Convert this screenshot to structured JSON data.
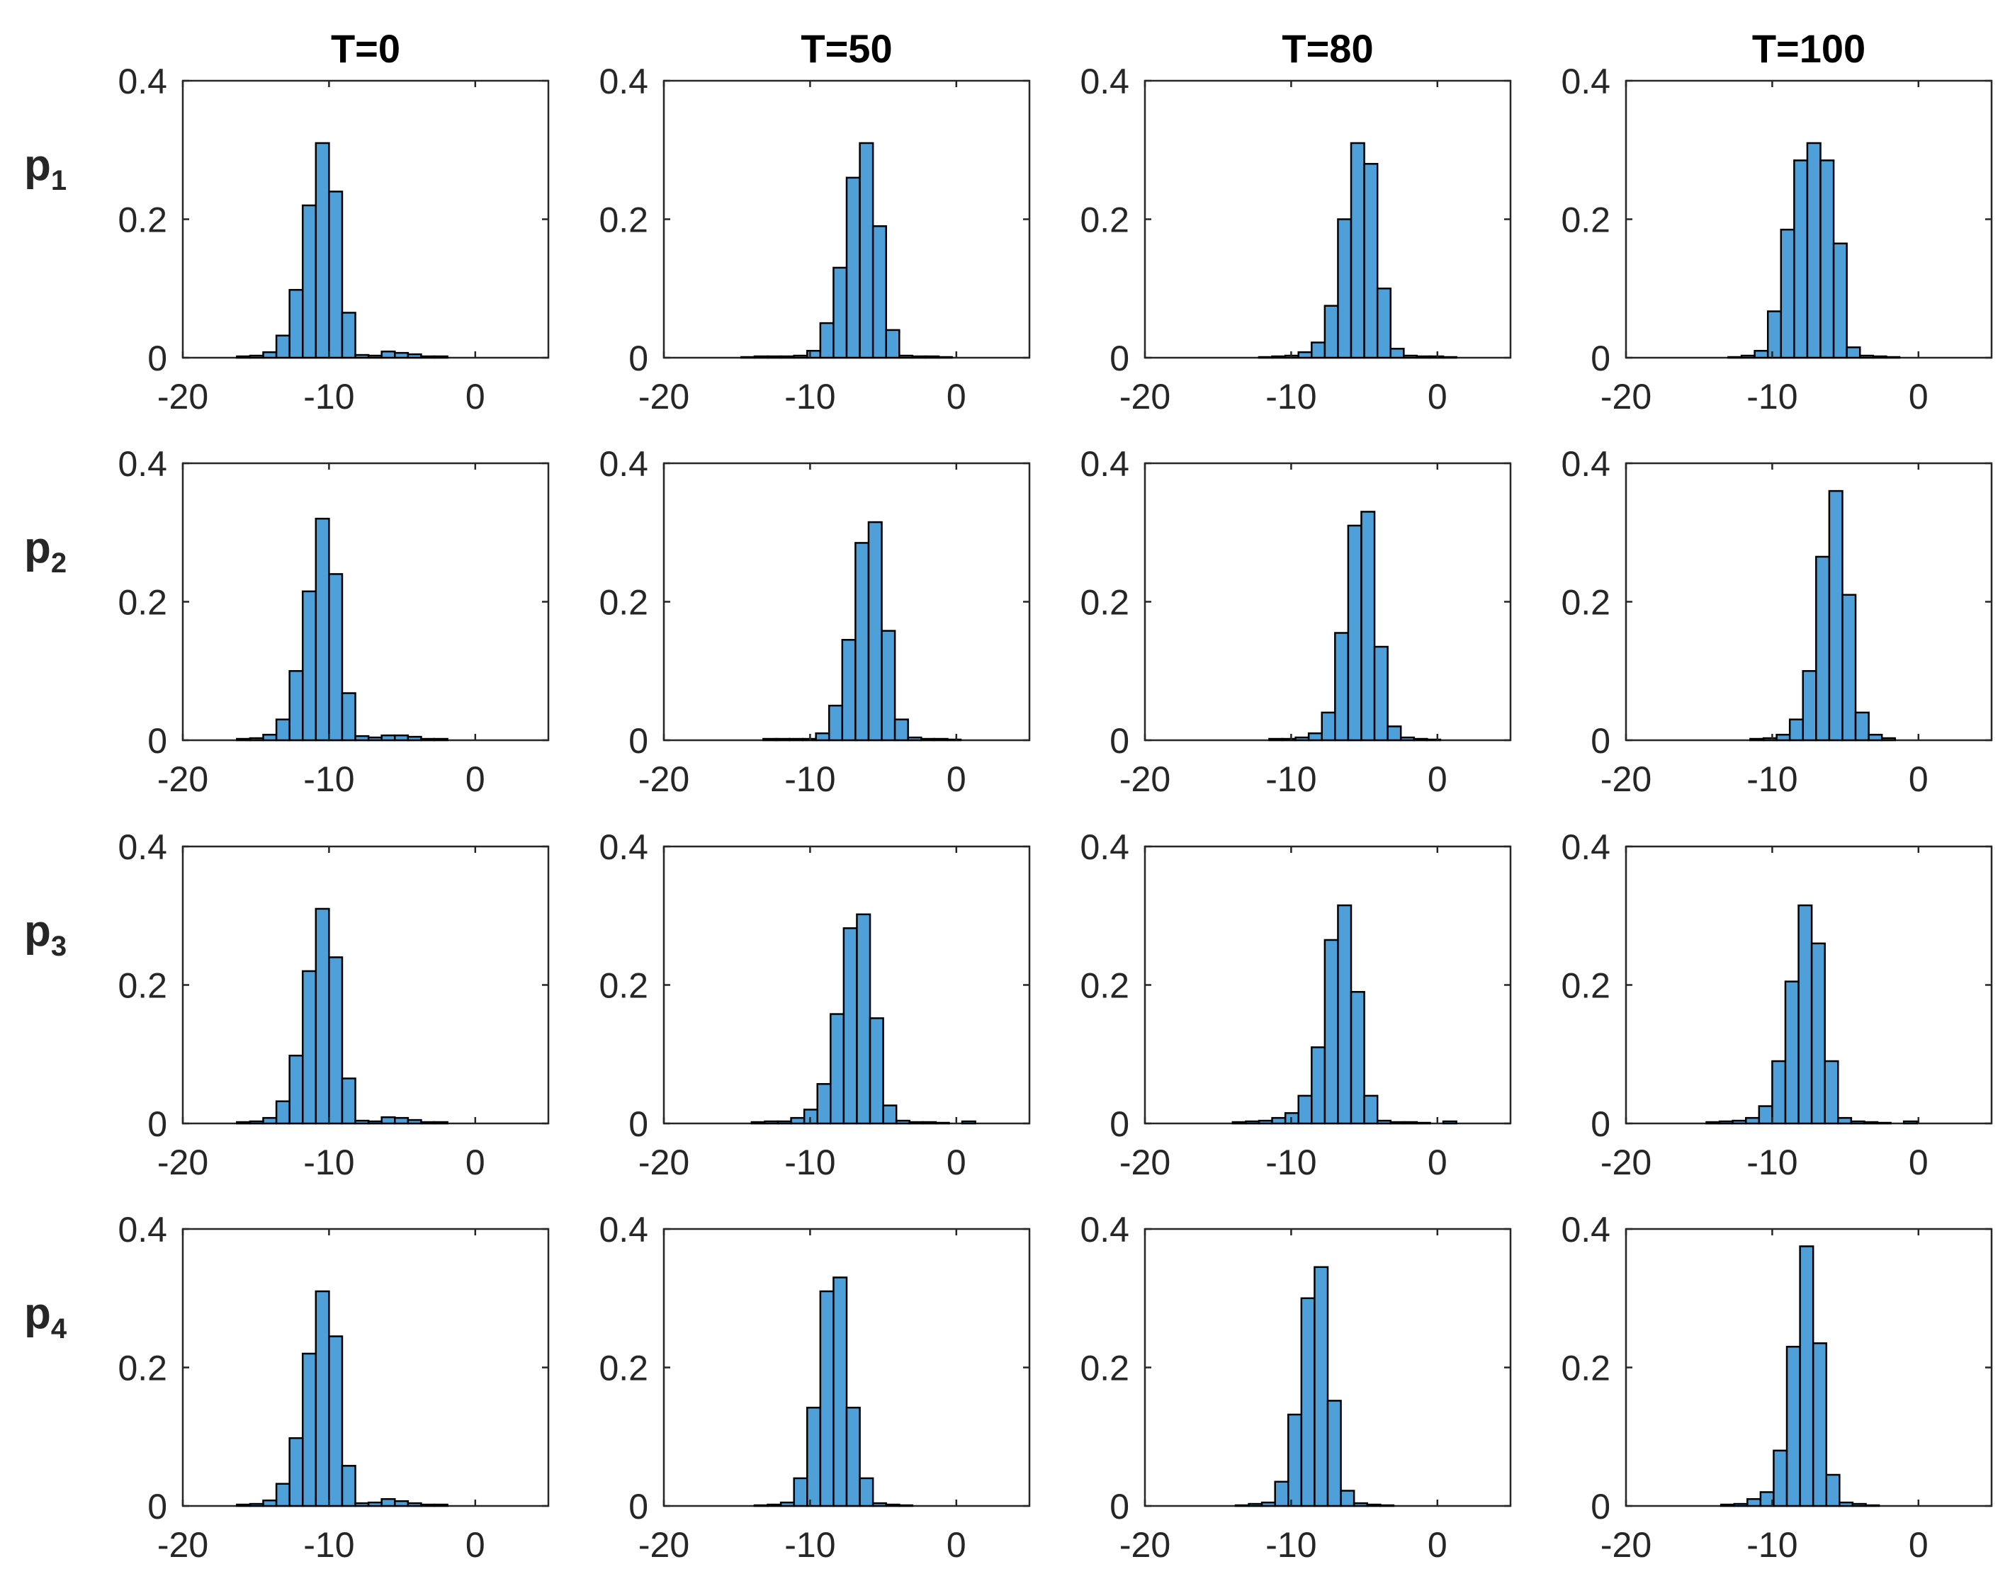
{
  "chart_data": {
    "type": "bar",
    "layout": "grid-4x4",
    "column_titles": [
      "T=0",
      "T=50",
      "T=80",
      "T=100"
    ],
    "row_labels": [
      {
        "main": "p",
        "sub": "1"
      },
      {
        "main": "p",
        "sub": "2"
      },
      {
        "main": "p",
        "sub": "3"
      },
      {
        "main": "p",
        "sub": "4"
      }
    ],
    "xlim": [
      -20,
      5
    ],
    "ylim": [
      0,
      0.4
    ],
    "xticks": [
      -20,
      -10,
      0
    ],
    "xtick_labels": [
      "-20",
      "-10",
      "0"
    ],
    "yticks": [
      0,
      0.2,
      0.4
    ],
    "ytick_labels": [
      "0",
      "0.2",
      "0.4"
    ],
    "bin_width": 0.9,
    "bar_color": "#4F9FD8",
    "edge_color": "#000000",
    "panels": [
      {
        "row": 0,
        "col": 0,
        "start": -16.3,
        "values": [
          0.002,
          0.003,
          0.008,
          0.032,
          0.098,
          0.22,
          0.31,
          0.24,
          0.065,
          0.004,
          0.003,
          0.009,
          0.007,
          0.005,
          0.002,
          0.002
        ]
      },
      {
        "row": 0,
        "col": 1,
        "start": -14.7,
        "values": [
          0.001,
          0.002,
          0.002,
          0.002,
          0.003,
          0.01,
          0.05,
          0.13,
          0.26,
          0.31,
          0.19,
          0.04,
          0.003,
          0.002,
          0.002,
          0.001
        ]
      },
      {
        "row": 0,
        "col": 2,
        "start": -12.2,
        "values": [
          0.001,
          0.002,
          0.003,
          0.008,
          0.022,
          0.075,
          0.2,
          0.31,
          0.28,
          0.1,
          0.013,
          0.003,
          0.002,
          0.002,
          0.001
        ]
      },
      {
        "row": 0,
        "col": 3,
        "start": -13,
        "values": [
          0.001,
          0.003,
          0.01,
          0.067,
          0.185,
          0.285,
          0.31,
          0.285,
          0.165,
          0.015,
          0.003,
          0.002,
          0.001
        ]
      },
      {
        "row": 1,
        "col": 0,
        "start": -16.3,
        "values": [
          0.002,
          0.003,
          0.008,
          0.03,
          0.1,
          0.215,
          0.32,
          0.24,
          0.068,
          0.006,
          0.004,
          0.007,
          0.007,
          0.005,
          0.002,
          0.002
        ]
      },
      {
        "row": 1,
        "col": 1,
        "start": -13.2,
        "values": [
          0.002,
          0.002,
          0.002,
          0.002,
          0.01,
          0.05,
          0.145,
          0.285,
          0.315,
          0.158,
          0.03,
          0.004,
          0.002,
          0.002,
          0.001
        ]
      },
      {
        "row": 1,
        "col": 2,
        "start": -11.5,
        "values": [
          0.002,
          0.002,
          0.004,
          0.01,
          0.04,
          0.155,
          0.31,
          0.33,
          0.135,
          0.02,
          0.004,
          0.002,
          0.001
        ]
      },
      {
        "row": 1,
        "col": 3,
        "start": -11.5,
        "values": [
          0.002,
          0.003,
          0.008,
          0.03,
          0.1,
          0.265,
          0.36,
          0.21,
          0.04,
          0.008,
          0.003
        ]
      },
      {
        "row": 2,
        "col": 0,
        "start": -16.3,
        "values": [
          0.002,
          0.003,
          0.008,
          0.032,
          0.098,
          0.22,
          0.31,
          0.24,
          0.065,
          0.004,
          0.003,
          0.009,
          0.008,
          0.005,
          0.002,
          0.002
        ]
      },
      {
        "row": 2,
        "col": 1,
        "start": -14,
        "values": [
          0.002,
          0.003,
          0.003,
          0.008,
          0.02,
          0.057,
          0.158,
          0.282,
          0.302,
          0.152,
          0.026,
          0.004,
          0.002,
          0.002,
          0.001,
          0,
          0.003
        ]
      },
      {
        "row": 2,
        "col": 2,
        "start": -14,
        "values": [
          0.002,
          0.003,
          0.004,
          0.008,
          0.015,
          0.04,
          0.11,
          0.265,
          0.315,
          0.19,
          0.04,
          0.004,
          0.002,
          0.002,
          0.001,
          0,
          0.003
        ]
      },
      {
        "row": 2,
        "col": 3,
        "start": -14.5,
        "values": [
          0.002,
          0.003,
          0.004,
          0.008,
          0.025,
          0.09,
          0.205,
          0.315,
          0.26,
          0.09,
          0.008,
          0.003,
          0.002,
          0.001,
          0,
          0.003
        ]
      },
      {
        "row": 3,
        "col": 0,
        "start": -16.3,
        "values": [
          0.002,
          0.003,
          0.008,
          0.032,
          0.098,
          0.22,
          0.31,
          0.245,
          0.058,
          0.004,
          0.005,
          0.01,
          0.007,
          0.004,
          0.002,
          0.002
        ]
      },
      {
        "row": 3,
        "col": 1,
        "start": -13.8,
        "values": [
          0.001,
          0.002,
          0.005,
          0.04,
          0.142,
          0.31,
          0.33,
          0.142,
          0.04,
          0.004,
          0.002,
          0.001
        ]
      },
      {
        "row": 3,
        "col": 2,
        "start": -13.8,
        "values": [
          0.001,
          0.003,
          0.005,
          0.035,
          0.132,
          0.3,
          0.345,
          0.152,
          0.022,
          0.004,
          0.002,
          0.001
        ]
      },
      {
        "row": 3,
        "col": 3,
        "start": -13.5,
        "values": [
          0.002,
          0.003,
          0.01,
          0.02,
          0.08,
          0.23,
          0.375,
          0.235,
          0.045,
          0.005,
          0.003,
          0.001
        ]
      }
    ]
  }
}
